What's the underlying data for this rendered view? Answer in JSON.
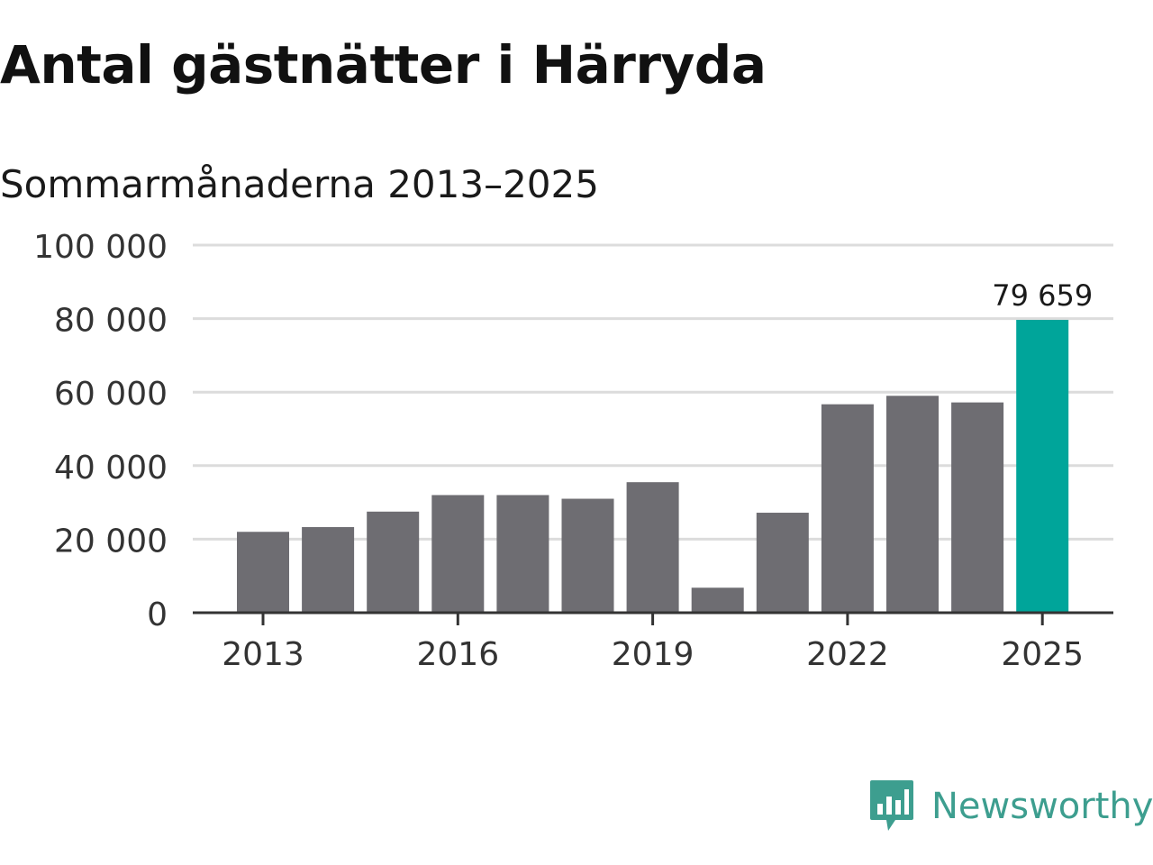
{
  "brand": {
    "name": "Newsworthy",
    "logo_icon": "chart-speech-bubble-icon",
    "color": "#3d9e8f"
  },
  "chart_data": {
    "type": "bar",
    "title": "Antal gästnätter i Härryda",
    "subtitle": "Sommarmånaderna 2013–2025",
    "categories": [
      "2013",
      "2014",
      "2015",
      "2016",
      "2017",
      "2018",
      "2019",
      "2020",
      "2021",
      "2022",
      "2023",
      "2024",
      "2025"
    ],
    "values": [
      22000,
      23300,
      27500,
      32000,
      32000,
      31000,
      35500,
      6800,
      27200,
      56700,
      59000,
      57200,
      79659
    ],
    "ylim": [
      0,
      100000
    ],
    "yticks": [
      0,
      20000,
      40000,
      60000,
      80000,
      100000
    ],
    "ytick_labels": [
      "0",
      "20 000",
      "40 000",
      "60 000",
      "80 000",
      "100 000"
    ],
    "xtick_labels": [
      "2013",
      "2016",
      "2019",
      "2022",
      "2025"
    ],
    "highlight_index": 12,
    "highlight_label": "79 659",
    "grid": true,
    "colors": {
      "bar": "#6e6d72",
      "highlight": "#00a59a",
      "grid": "#dcdcdc",
      "axis": "#333333"
    }
  }
}
